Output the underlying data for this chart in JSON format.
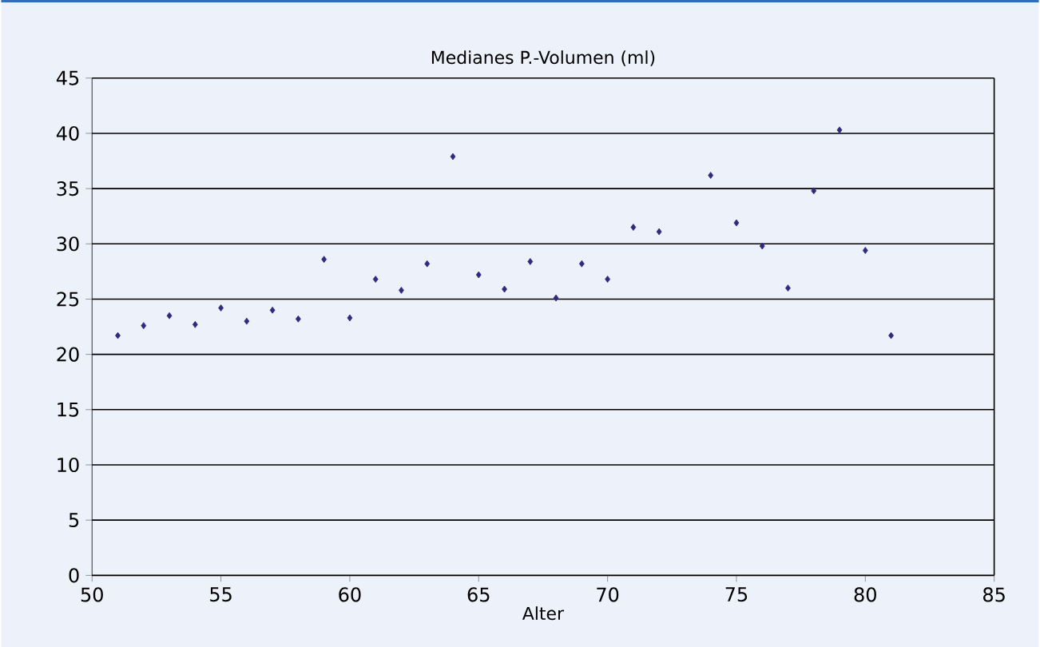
{
  "chart_data": {
    "type": "scatter",
    "title": "Medianes P.-Volumen (ml)",
    "xlabel": "Alter",
    "x": [
      51,
      52,
      53,
      54,
      55,
      56,
      57,
      58,
      59,
      60,
      61,
      62,
      63,
      64,
      65,
      66,
      67,
      68,
      69,
      70,
      71,
      72,
      74,
      75,
      76,
      77,
      78,
      79,
      80,
      81
    ],
    "values": [
      21.7,
      22.6,
      23.5,
      22.7,
      24.2,
      23.0,
      24.0,
      23.2,
      28.6,
      23.3,
      26.8,
      25.8,
      28.2,
      37.9,
      27.2,
      25.9,
      28.4,
      25.1,
      28.2,
      26.8,
      31.5,
      31.1,
      36.2,
      31.9,
      29.8,
      26.0,
      34.8,
      40.3,
      29.4,
      21.7
    ],
    "color": "#2e2a80",
    "marker": "diamond",
    "grid": "y",
    "xlim": [
      50,
      85
    ],
    "xticks": [
      50,
      55,
      60,
      65,
      70,
      75,
      80,
      85
    ],
    "ylim": [
      0,
      45
    ],
    "yticks": [
      0,
      5,
      10,
      15,
      20,
      25,
      30,
      35,
      40,
      45
    ]
  }
}
